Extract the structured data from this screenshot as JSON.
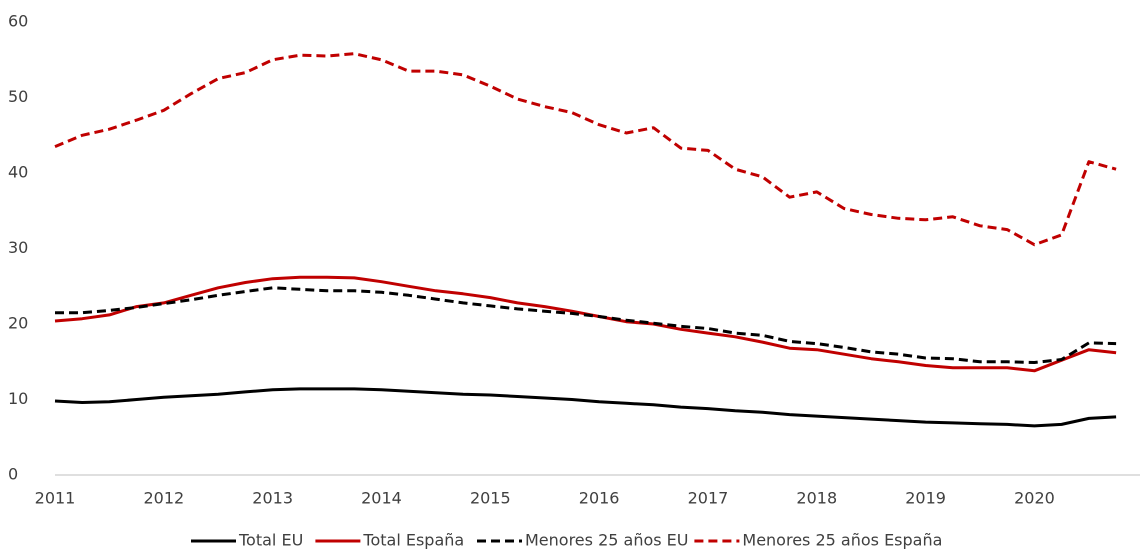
{
  "chart_data": {
    "type": "line",
    "x": [
      2011,
      2011.25,
      2011.5,
      2011.75,
      2012,
      2012.25,
      2012.5,
      2012.75,
      2013,
      2013.25,
      2013.5,
      2013.75,
      2014,
      2014.25,
      2014.5,
      2014.75,
      2015,
      2015.25,
      2015.5,
      2015.75,
      2016,
      2016.25,
      2016.5,
      2016.75,
      2017,
      2017.25,
      2017.5,
      2017.75,
      2018,
      2018.25,
      2018.5,
      2018.75,
      2019,
      2019.25,
      2019.5,
      2019.75,
      2020,
      2020.25,
      2020.5,
      2020.75
    ],
    "series": [
      {
        "name": "Total EU",
        "color": "#000000",
        "dashed": false,
        "values": [
          9.8,
          9.6,
          9.7,
          10.0,
          10.3,
          10.5,
          10.7,
          11.0,
          11.3,
          11.4,
          11.4,
          11.4,
          11.3,
          11.1,
          10.9,
          10.7,
          10.6,
          10.4,
          10.2,
          10.0,
          9.7,
          9.5,
          9.3,
          9.0,
          8.8,
          8.5,
          8.3,
          8.0,
          7.8,
          7.6,
          7.4,
          7.2,
          7.0,
          6.9,
          6.8,
          6.7,
          6.5,
          6.7,
          7.5,
          7.7
        ]
      },
      {
        "name": "Total España",
        "color": "#c00000",
        "dashed": false,
        "values": [
          20.4,
          20.7,
          21.2,
          22.3,
          22.8,
          23.8,
          24.8,
          25.5,
          26.0,
          26.2,
          26.2,
          26.1,
          25.6,
          25.0,
          24.4,
          24.0,
          23.5,
          22.8,
          22.3,
          21.7,
          21.0,
          20.3,
          20.0,
          19.3,
          18.8,
          18.3,
          17.6,
          16.8,
          16.6,
          16.0,
          15.4,
          15.0,
          14.5,
          14.2,
          14.2,
          14.2,
          13.8,
          15.2,
          16.6,
          16.2
        ]
      },
      {
        "name": "Menores 25 años EU",
        "color": "#000000",
        "dashed": true,
        "values": [
          21.5,
          21.5,
          21.8,
          22.2,
          22.7,
          23.2,
          23.8,
          24.3,
          24.8,
          24.6,
          24.4,
          24.4,
          24.2,
          23.8,
          23.3,
          22.8,
          22.4,
          22.0,
          21.7,
          21.4,
          21.0,
          20.5,
          20.1,
          19.7,
          19.4,
          18.8,
          18.5,
          17.7,
          17.4,
          16.9,
          16.3,
          16.0,
          15.5,
          15.4,
          15.0,
          15.0,
          14.9,
          15.3,
          17.5,
          17.4
        ]
      },
      {
        "name": "Menores 25 años España",
        "color": "#c00000",
        "dashed": true,
        "values": [
          43.5,
          45.0,
          45.8,
          47.0,
          48.3,
          50.5,
          52.5,
          53.3,
          55.0,
          55.6,
          55.5,
          55.8,
          55.0,
          53.5,
          53.5,
          53.0,
          51.5,
          49.8,
          48.8,
          48.0,
          46.4,
          45.3,
          46.0,
          43.3,
          43.0,
          40.5,
          39.5,
          36.8,
          37.5,
          35.3,
          34.5,
          34.0,
          33.8,
          34.2,
          33.0,
          32.5,
          30.5,
          31.8,
          41.5,
          40.5
        ]
      }
    ],
    "xlim": [
      2011,
      2020.97
    ],
    "xticks": [
      2011,
      2012,
      2013,
      2014,
      2015,
      2016,
      2017,
      2018,
      2019,
      2020
    ],
    "ylim": [
      0,
      60
    ],
    "yticks": [
      0,
      10,
      20,
      30,
      40,
      50,
      60
    ],
    "legend": "bottom"
  }
}
